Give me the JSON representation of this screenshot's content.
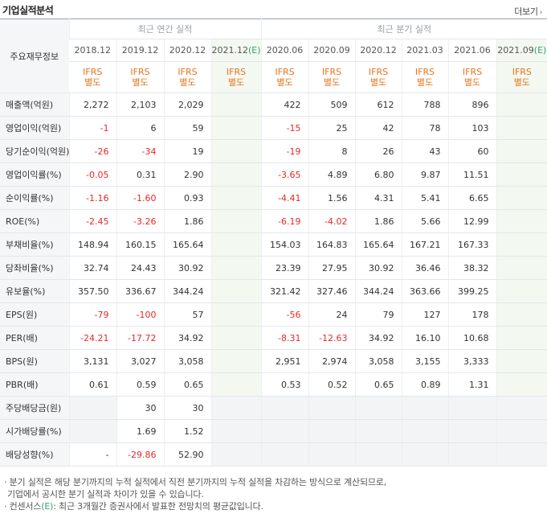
{
  "header": {
    "title": "기업실적분석",
    "more_label": "더보기"
  },
  "table": {
    "row_header_label": "주요재무정보",
    "group_annual": "최근 연간 실적",
    "group_quarterly": "최근 분기 실적",
    "annual_periods": [
      "2018.12",
      "2019.12",
      "2020.12"
    ],
    "annual_estimate_period": "2021.12",
    "quarterly_periods": [
      "2020.06",
      "2020.09",
      "2020.12",
      "2021.03",
      "2021.06"
    ],
    "quarterly_estimate_period": "2021.09",
    "estimate_mark": "(E)",
    "ifrs_line1": "IFRS",
    "ifrs_line2": "별도",
    "rows": [
      {
        "label": "매출액(억원)",
        "annual": [
          "2,272",
          "2,103",
          "2,029"
        ],
        "annual_e": "",
        "quarterly": [
          "422",
          "509",
          "612",
          "788",
          "896"
        ],
        "quarterly_e": ""
      },
      {
        "label": "영업이익(억원)",
        "annual": [
          "-1",
          "6",
          "59"
        ],
        "annual_e": "",
        "quarterly": [
          "-15",
          "25",
          "42",
          "78",
          "103"
        ],
        "quarterly_e": ""
      },
      {
        "label": "당기순이익(억원)",
        "annual": [
          "-26",
          "-34",
          "19"
        ],
        "annual_e": "",
        "quarterly": [
          "-19",
          "8",
          "26",
          "43",
          "60"
        ],
        "quarterly_e": ""
      },
      {
        "label": "영업이익률(%)",
        "annual": [
          "-0.05",
          "0.31",
          "2.90"
        ],
        "annual_e": "",
        "quarterly": [
          "-3.65",
          "4.89",
          "6.80",
          "9.87",
          "11.51"
        ],
        "quarterly_e": ""
      },
      {
        "label": "순이익률(%)",
        "annual": [
          "-1.16",
          "-1.60",
          "0.93"
        ],
        "annual_e": "",
        "quarterly": [
          "-4.41",
          "1.56",
          "4.31",
          "5.41",
          "6.65"
        ],
        "quarterly_e": ""
      },
      {
        "label": "ROE(%)",
        "annual": [
          "-2.45",
          "-3.26",
          "1.86"
        ],
        "annual_e": "",
        "quarterly": [
          "-6.19",
          "-4.02",
          "1.86",
          "5.66",
          "12.99"
        ],
        "quarterly_e": ""
      },
      {
        "label": "부채비율(%)",
        "annual": [
          "148.94",
          "160.15",
          "165.64"
        ],
        "annual_e": "",
        "quarterly": [
          "154.03",
          "164.83",
          "165.64",
          "167.21",
          "167.33"
        ],
        "quarterly_e": ""
      },
      {
        "label": "당좌비율(%)",
        "annual": [
          "32.74",
          "24.43",
          "30.92"
        ],
        "annual_e": "",
        "quarterly": [
          "23.39",
          "27.95",
          "30.92",
          "36.46",
          "38.32"
        ],
        "quarterly_e": ""
      },
      {
        "label": "유보율(%)",
        "annual": [
          "357.50",
          "336.67",
          "344.24"
        ],
        "annual_e": "",
        "quarterly": [
          "321.42",
          "327.46",
          "344.24",
          "363.66",
          "399.25"
        ],
        "quarterly_e": ""
      },
      {
        "label": "EPS(원)",
        "annual": [
          "-79",
          "-100",
          "57"
        ],
        "annual_e": "",
        "quarterly": [
          "-56",
          "24",
          "79",
          "127",
          "178"
        ],
        "quarterly_e": ""
      },
      {
        "label": "PER(배)",
        "annual": [
          "-24.21",
          "-17.72",
          "34.92"
        ],
        "annual_e": "",
        "quarterly": [
          "-8.31",
          "-12.63",
          "34.92",
          "16.10",
          "10.68"
        ],
        "quarterly_e": ""
      },
      {
        "label": "BPS(원)",
        "annual": [
          "3,131",
          "3,027",
          "3,058"
        ],
        "annual_e": "",
        "quarterly": [
          "2,951",
          "2,974",
          "3,058",
          "3,155",
          "3,333"
        ],
        "quarterly_e": ""
      },
      {
        "label": "PBR(배)",
        "annual": [
          "0.61",
          "0.59",
          "0.65"
        ],
        "annual_e": "",
        "quarterly": [
          "0.53",
          "0.52",
          "0.65",
          "0.89",
          "1.31"
        ],
        "quarterly_e": ""
      },
      {
        "label": "주당배당금(원)",
        "annual": [
          "",
          "30",
          "30"
        ],
        "annual_e": "",
        "quarterly": [
          "",
          "",
          "",
          "",
          ""
        ],
        "quarterly_e": "",
        "no_quarterly": true
      },
      {
        "label": "시가배당률(%)",
        "annual": [
          "",
          "1.69",
          "1.52"
        ],
        "annual_e": "",
        "quarterly": [
          "",
          "",
          "",
          "",
          ""
        ],
        "quarterly_e": "",
        "no_quarterly": true
      },
      {
        "label": "배당성향(%)",
        "annual": [
          "-",
          "-29.86",
          "52.90"
        ],
        "annual_e": "",
        "quarterly": [
          "",
          "",
          "",
          "",
          ""
        ],
        "quarterly_e": "",
        "no_quarterly": true
      }
    ]
  },
  "notes": {
    "line1": "· 분기 실적은 해당 분기까지의 누적 실적에서 직전 분기까지의 누적 실적을 차감하는 방식으로 계산되므로,",
    "line2": "기업에서 공시한 분기 실적과 차이가 있을 수 있습니다.",
    "line3_prefix": "· 컨센서스",
    "line3_mark": "(E)",
    "line3_suffix": ": 최근 3개월간 증권사에서 발표한 전망치의 평균값입니다."
  },
  "colors": {
    "negative": "#e5292a",
    "ifrs": "#e8731a",
    "estimate_mark": "#34a36b",
    "estimate_bg": "#f3f8f1",
    "label_bg": "#f5f6f7"
  }
}
